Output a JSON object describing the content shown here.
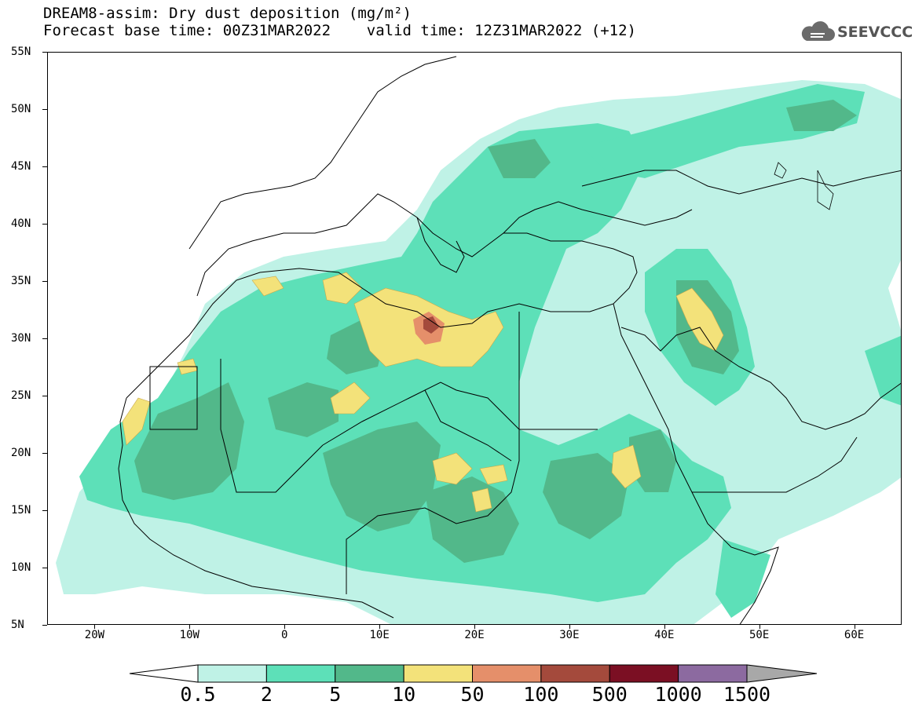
{
  "header": {
    "title_line1": "DREAM8-assim: Dry dust deposition (mg/m²)",
    "title_line2": "Forecast base time: 00Z31MAR2022    valid time: 12Z31MAR2022 (+12)"
  },
  "logo": {
    "text": "SEEVCCC",
    "icon": "cloud-icon"
  },
  "map": {
    "lat_labels": [
      "55N",
      "50N",
      "45N",
      "40N",
      "35N",
      "30N",
      "25N",
      "20N",
      "15N",
      "10N",
      "5N"
    ],
    "lon_labels": [
      "20W",
      "10W",
      "0",
      "10E",
      "20E",
      "30E",
      "40E",
      "50E",
      "60E"
    ],
    "extent": {
      "lon_min": -25,
      "lon_max": 65,
      "lat_min": 5,
      "lat_max": 55
    }
  },
  "legend": {
    "levels": [
      "0.5",
      "2",
      "5",
      "10",
      "50",
      "100",
      "500",
      "1000",
      "1500"
    ],
    "colors": [
      "#bff2e6",
      "#5de0b8",
      "#52b88a",
      "#f3e27a",
      "#e58f6a",
      "#a44a3c",
      "#7b0f23",
      "#8c6aa0"
    ],
    "under_color": "#ffffff",
    "over_color": "#a8a8a8"
  },
  "colors": {
    "lightest": "#bff2e6",
    "light": "#5de0b8",
    "mid": "#52b88a",
    "yellow": "#f3e27a",
    "orange": "#e58f6a",
    "brown": "#a44a3c"
  }
}
